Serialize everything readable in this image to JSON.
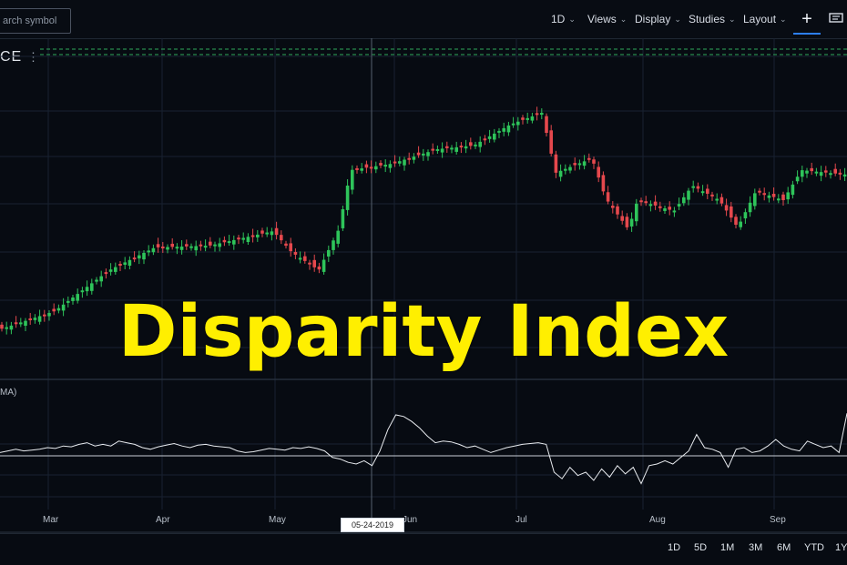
{
  "toolbar": {
    "search_placeholder": "arch symbol",
    "interval": "1D",
    "views": "Views",
    "display": "Display",
    "studies": "Studies",
    "layout": "Layout",
    "add_symbol": "+"
  },
  "price_pane": {
    "label": "CE",
    "menu_glyph": "⋮"
  },
  "overlay_title": "Disparity Index",
  "study_label": "MA)",
  "crosshair_date": "05-24-2019",
  "x_axis_months": [
    "Mar",
    "Apr",
    "May",
    "Jun",
    "Jul",
    "Aug",
    "Sep"
  ],
  "range_buttons": [
    "1D",
    "5D",
    "1M",
    "3M",
    "6M",
    "YTD",
    "1Y"
  ],
  "colors": {
    "up": "#2ec45a",
    "down": "#e5484d",
    "background": "#070b12",
    "grid": "#182131",
    "title": "#ffef00"
  },
  "chart_data": {
    "type": "line",
    "series": [
      {
        "name": "Disparity Index",
        "values": [
          0.2,
          0.3,
          0.4,
          0.3,
          0.35,
          0.4,
          0.5,
          0.45,
          0.6,
          0.55,
          0.7,
          0.8,
          0.6,
          0.7,
          0.6,
          0.9,
          0.8,
          0.7,
          0.5,
          0.4,
          0.55,
          0.65,
          0.75,
          0.6,
          0.5,
          0.65,
          0.7,
          0.6,
          0.55,
          0.5,
          0.3,
          0.2,
          0.25,
          0.35,
          0.45,
          0.4,
          0.35,
          0.5,
          0.45,
          0.55,
          0.45,
          0.3,
          -0.1,
          -0.2,
          -0.4,
          -0.5,
          -0.3,
          -0.6,
          0.3,
          1.6,
          2.5,
          2.4,
          2.1,
          1.7,
          1.2,
          0.8,
          0.9,
          0.85,
          0.7,
          0.5,
          0.6,
          0.4,
          0.2,
          0.35,
          0.5,
          0.6,
          0.7,
          0.75,
          0.8,
          0.7,
          -1.0,
          -1.4,
          -0.7,
          -1.2,
          -1.0,
          -1.5,
          -0.8,
          -1.3,
          -0.6,
          -1.1,
          -0.7,
          -1.7,
          -0.6,
          -0.5,
          -0.3,
          -0.5,
          -0.1,
          0.3,
          1.3,
          0.5,
          0.4,
          0.2,
          -0.7,
          0.4,
          0.5,
          0.2,
          0.3,
          0.6,
          1.0,
          0.6,
          0.4,
          0.3,
          0.9,
          0.7,
          0.5,
          0.6,
          0.2,
          2.6
        ]
      }
    ]
  }
}
